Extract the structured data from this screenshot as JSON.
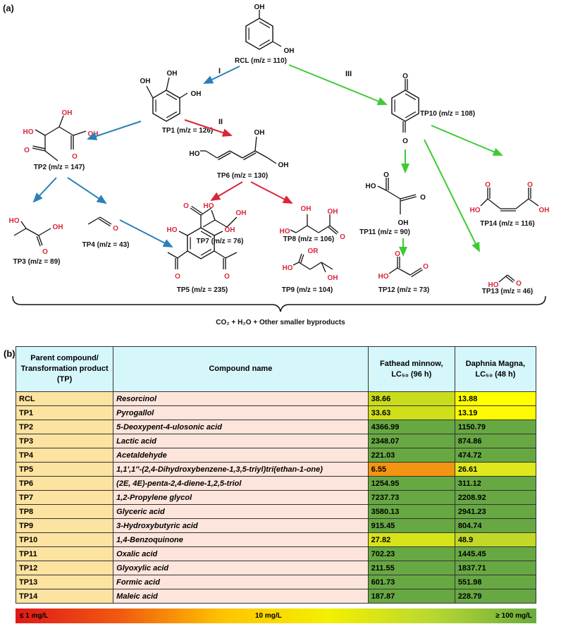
{
  "panel_a_label": "(a)",
  "panel_b_label": "(b)",
  "pathways": {
    "I": "I",
    "II": "II",
    "III": "III"
  },
  "colors": {
    "pathway_I": "#2a80b9",
    "pathway_II": "#d9263b",
    "pathway_III": "#3fc936",
    "atom_red": "#d9263b"
  },
  "compounds": {
    "RCL": {
      "label": "RCL (m/z = 110)",
      "atoms": [
        "OH",
        "OH"
      ]
    },
    "TP1": {
      "label": "TP1 (m/z = 126)",
      "atoms": [
        "OH",
        "OH",
        "OH"
      ]
    },
    "TP2": {
      "label": "TP2 (m/z = 147)",
      "atoms": [
        "O",
        "HO",
        "OH",
        "O",
        "OH"
      ]
    },
    "TP3": {
      "label": "TP3 (m/z = 89)",
      "atoms": [
        "HO",
        "OH",
        "O"
      ]
    },
    "TP4": {
      "label": "TP4 (m/z = 43)",
      "atoms": [
        "O"
      ]
    },
    "TP5": {
      "label": "TP5 (m/z = 235)",
      "atoms": [
        "O",
        "HO",
        "OH",
        "O",
        "O"
      ]
    },
    "TP6": {
      "label": "TP6 (m/z = 130)",
      "atoms": [
        "HO",
        "OH",
        "OH"
      ]
    },
    "TP7": {
      "label": "TP7 (m/z = 76)",
      "atoms": [
        "HO",
        "OH"
      ]
    },
    "TP8": {
      "label": "TP8 (m/z = 106)",
      "atoms": [
        "HO",
        "OH",
        "O",
        "OH"
      ]
    },
    "TP9": {
      "label": "TP9 (m/z = 104)",
      "atoms": [
        "HO",
        "OR",
        "OH"
      ]
    },
    "TP10": {
      "label": "TP10 (m/z = 108)",
      "atoms": [
        "O",
        "O"
      ]
    },
    "TP11": {
      "label": "TP11 (m/z = 90)",
      "atoms": [
        "HO",
        "O",
        "O",
        "OH"
      ]
    },
    "TP12": {
      "label": "TP12 (m/z = 73)",
      "atoms": [
        "HO",
        "O",
        "O"
      ]
    },
    "TP13": {
      "label": "TP13 (m/z = 46)",
      "atoms": [
        "HO",
        "O"
      ]
    },
    "TP14": {
      "label": "TP14 (m/z = 116)",
      "atoms": [
        "O",
        "HO",
        "O",
        "OH"
      ]
    }
  },
  "byproducts": "CO₂ + H₂O + Other smaller byproducts",
  "table": {
    "headers": [
      "Parent compound/ Transformation product (TP)",
      "Compound name",
      "Fathead minnow, LC₅₀ (96 h)",
      "Daphnia Magna, LC₅₀ (48 h)"
    ],
    "rows": [
      {
        "id": "RCL",
        "name": "Resorcinol",
        "fathead": "38.66",
        "daphnia": "13.88",
        "fc": "#c9dc1c",
        "dc": "#ffff00"
      },
      {
        "id": "TP1",
        "name": "Pyrogallol",
        "fathead": "33.63",
        "daphnia": "13.19",
        "fc": "#cfdf1a",
        "dc": "#fdfb02"
      },
      {
        "id": "TP2",
        "name": "5-Deoxypent-4-ulosonic acid",
        "fathead": "4366.99",
        "daphnia": "1150.79",
        "fc": "#67a843",
        "dc": "#67a843"
      },
      {
        "id": "TP3",
        "name": "Lactic acid",
        "fathead": "2348.07",
        "daphnia": "874.86",
        "fc": "#67a843",
        "dc": "#67a843"
      },
      {
        "id": "TP4",
        "name": "Acetaldehyde",
        "fathead": "221.03",
        "daphnia": "474.72",
        "fc": "#67a843",
        "dc": "#67a843"
      },
      {
        "id": "TP5",
        "name": "1,1′,1″-(2,4-Dihydroxybenzene-1,3,5-triyl)tri(ethan-1-one)",
        "fathead": "6.55",
        "daphnia": "26.61",
        "fc": "#f39512",
        "dc": "#dfe81c"
      },
      {
        "id": "TP6",
        "name": "(2E, 4E)-penta-2,4-diene-1,2,5-triol",
        "fathead": "1254.95",
        "daphnia": "311.12",
        "fc": "#67a843",
        "dc": "#67a843"
      },
      {
        "id": "TP7",
        "name": "1,2-Propylene glycol",
        "fathead": "7237.73",
        "daphnia": "2208.92",
        "fc": "#67a843",
        "dc": "#67a843"
      },
      {
        "id": "TP8",
        "name": "Glyceric acid",
        "fathead": "3580.13",
        "daphnia": "2941.23",
        "fc": "#67a843",
        "dc": "#67a843"
      },
      {
        "id": "TP9",
        "name": "3-Hydroxybutyric acid",
        "fathead": "915.45",
        "daphnia": "804.74",
        "fc": "#67a843",
        "dc": "#67a843"
      },
      {
        "id": "TP10",
        "name": "1,4-Benzoquinone",
        "fathead": "27.82",
        "daphnia": "48.9",
        "fc": "#d6e31a",
        "dc": "#c3d826"
      },
      {
        "id": "TP11",
        "name": "Oxalic acid",
        "fathead": "702.23",
        "daphnia": "1445.45",
        "fc": "#67a843",
        "dc": "#67a843"
      },
      {
        "id": "TP12",
        "name": "Glyoxylic acid",
        "fathead": "211.55",
        "daphnia": "1837.71",
        "fc": "#67a843",
        "dc": "#67a843"
      },
      {
        "id": "TP13",
        "name": "Formic acid",
        "fathead": "601.73",
        "daphnia": "551.98",
        "fc": "#67a843",
        "dc": "#67a843"
      },
      {
        "id": "TP14",
        "name": "Maleic acid",
        "fathead": "187.87",
        "daphnia": "228.79",
        "fc": "#67a843",
        "dc": "#67a843"
      }
    ]
  },
  "legend": {
    "low": "≤ 1 mg/L",
    "mid": "10 mg/L",
    "high": "≥ 100 mg/L"
  }
}
